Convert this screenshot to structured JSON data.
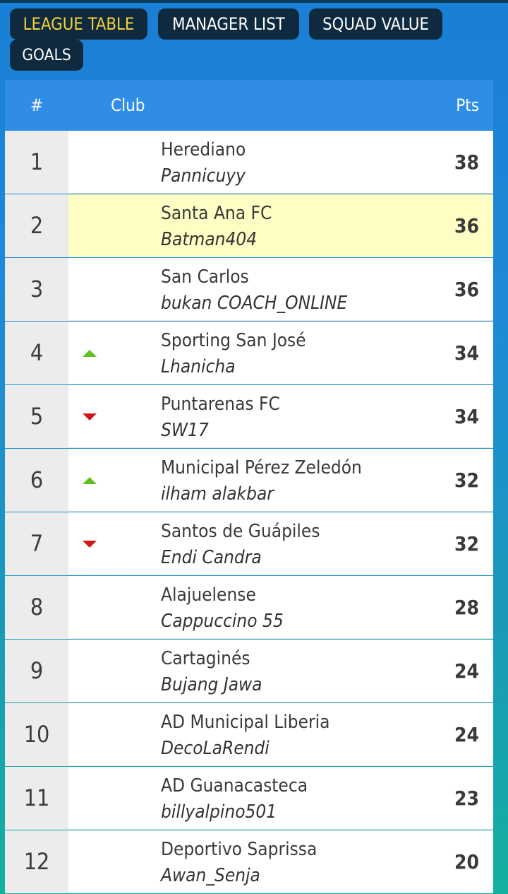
{
  "tabs": {
    "league_table": "LEAGUE TABLE",
    "manager_list": "MANAGER LIST",
    "squad_value": "SQUAD VALUE",
    "goals": "GOALS"
  },
  "table": {
    "headers": {
      "rank": "#",
      "club": "Club",
      "pts": "Pts"
    },
    "rows": [
      {
        "rank": "1",
        "club": "Herediano",
        "manager": "Pannicuyy",
        "pts": "38",
        "trend": "none",
        "highlight": false
      },
      {
        "rank": "2",
        "club": "Santa Ana FC",
        "manager": "Batman404",
        "pts": "36",
        "trend": "none",
        "highlight": true
      },
      {
        "rank": "3",
        "club": "San Carlos",
        "manager": "bukan COACH_ONLINE",
        "pts": "36",
        "trend": "none",
        "highlight": false
      },
      {
        "rank": "4",
        "club": "Sporting San José",
        "manager": "Lhanicha",
        "pts": "34",
        "trend": "up",
        "highlight": false
      },
      {
        "rank": "5",
        "club": "Puntarenas FC",
        "manager": "SW17",
        "pts": "34",
        "trend": "down",
        "highlight": false
      },
      {
        "rank": "6",
        "club": "Municipal Pérez Zeledón",
        "manager": "ilham alakbar",
        "pts": "32",
        "trend": "up",
        "highlight": false
      },
      {
        "rank": "7",
        "club": "Santos de Guápiles",
        "manager": "Endi Candra",
        "pts": "32",
        "trend": "down",
        "highlight": false
      },
      {
        "rank": "8",
        "club": "Alajuelense",
        "manager": "Cappuccino 55",
        "pts": "28",
        "trend": "none",
        "highlight": false
      },
      {
        "rank": "9",
        "club": "Cartaginés",
        "manager": "Bujang Jawa",
        "pts": "24",
        "trend": "none",
        "highlight": false
      },
      {
        "rank": "10",
        "club": "AD Municipal Liberia",
        "manager": "DecoLaRendi",
        "pts": "24",
        "trend": "none",
        "highlight": false
      },
      {
        "rank": "11",
        "club": "AD Guanacasteca",
        "manager": "billyalpino501",
        "pts": "23",
        "trend": "none",
        "highlight": false
      },
      {
        "rank": "12",
        "club": "Deportivo Saprissa",
        "manager": "Awan_Senja",
        "pts": "20",
        "trend": "none",
        "highlight": false
      }
    ]
  },
  "colors": {
    "active_tab_text": "#f5d23a",
    "tab_background": "#0f2a3e",
    "header_background": "#2f8de6",
    "highlight_row": "#fdfdc4",
    "trend_up": "#5fc020",
    "trend_down": "#d01818"
  }
}
